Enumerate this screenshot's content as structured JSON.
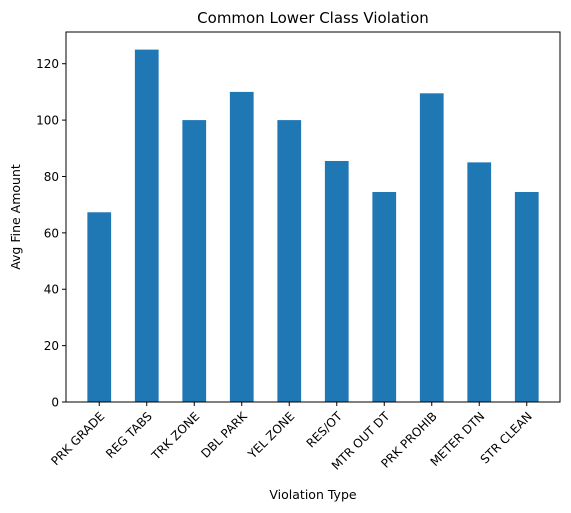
{
  "chart_data": {
    "type": "bar",
    "title": "Common Lower Class Violation",
    "xlabel": "Violation Type",
    "ylabel": "Avg Fine Amount",
    "categories": [
      "PRK GRADE",
      "REG TABS",
      "TRK ZONE",
      "DBL PARK",
      "YEL ZONE",
      "RES/OT",
      "MTR OUT DT",
      "PRK PROHIB",
      "METER DTN",
      "STR CLEAN"
    ],
    "values": [
      67.3,
      125.0,
      100.0,
      110.0,
      100.0,
      85.5,
      74.5,
      109.5,
      85.0,
      74.5
    ],
    "ylim": [
      0,
      131.25
    ],
    "yticks": [
      0,
      20,
      40,
      60,
      80,
      100,
      120
    ],
    "bar_color": "#1f77b4",
    "grid": false,
    "legend": "none"
  }
}
